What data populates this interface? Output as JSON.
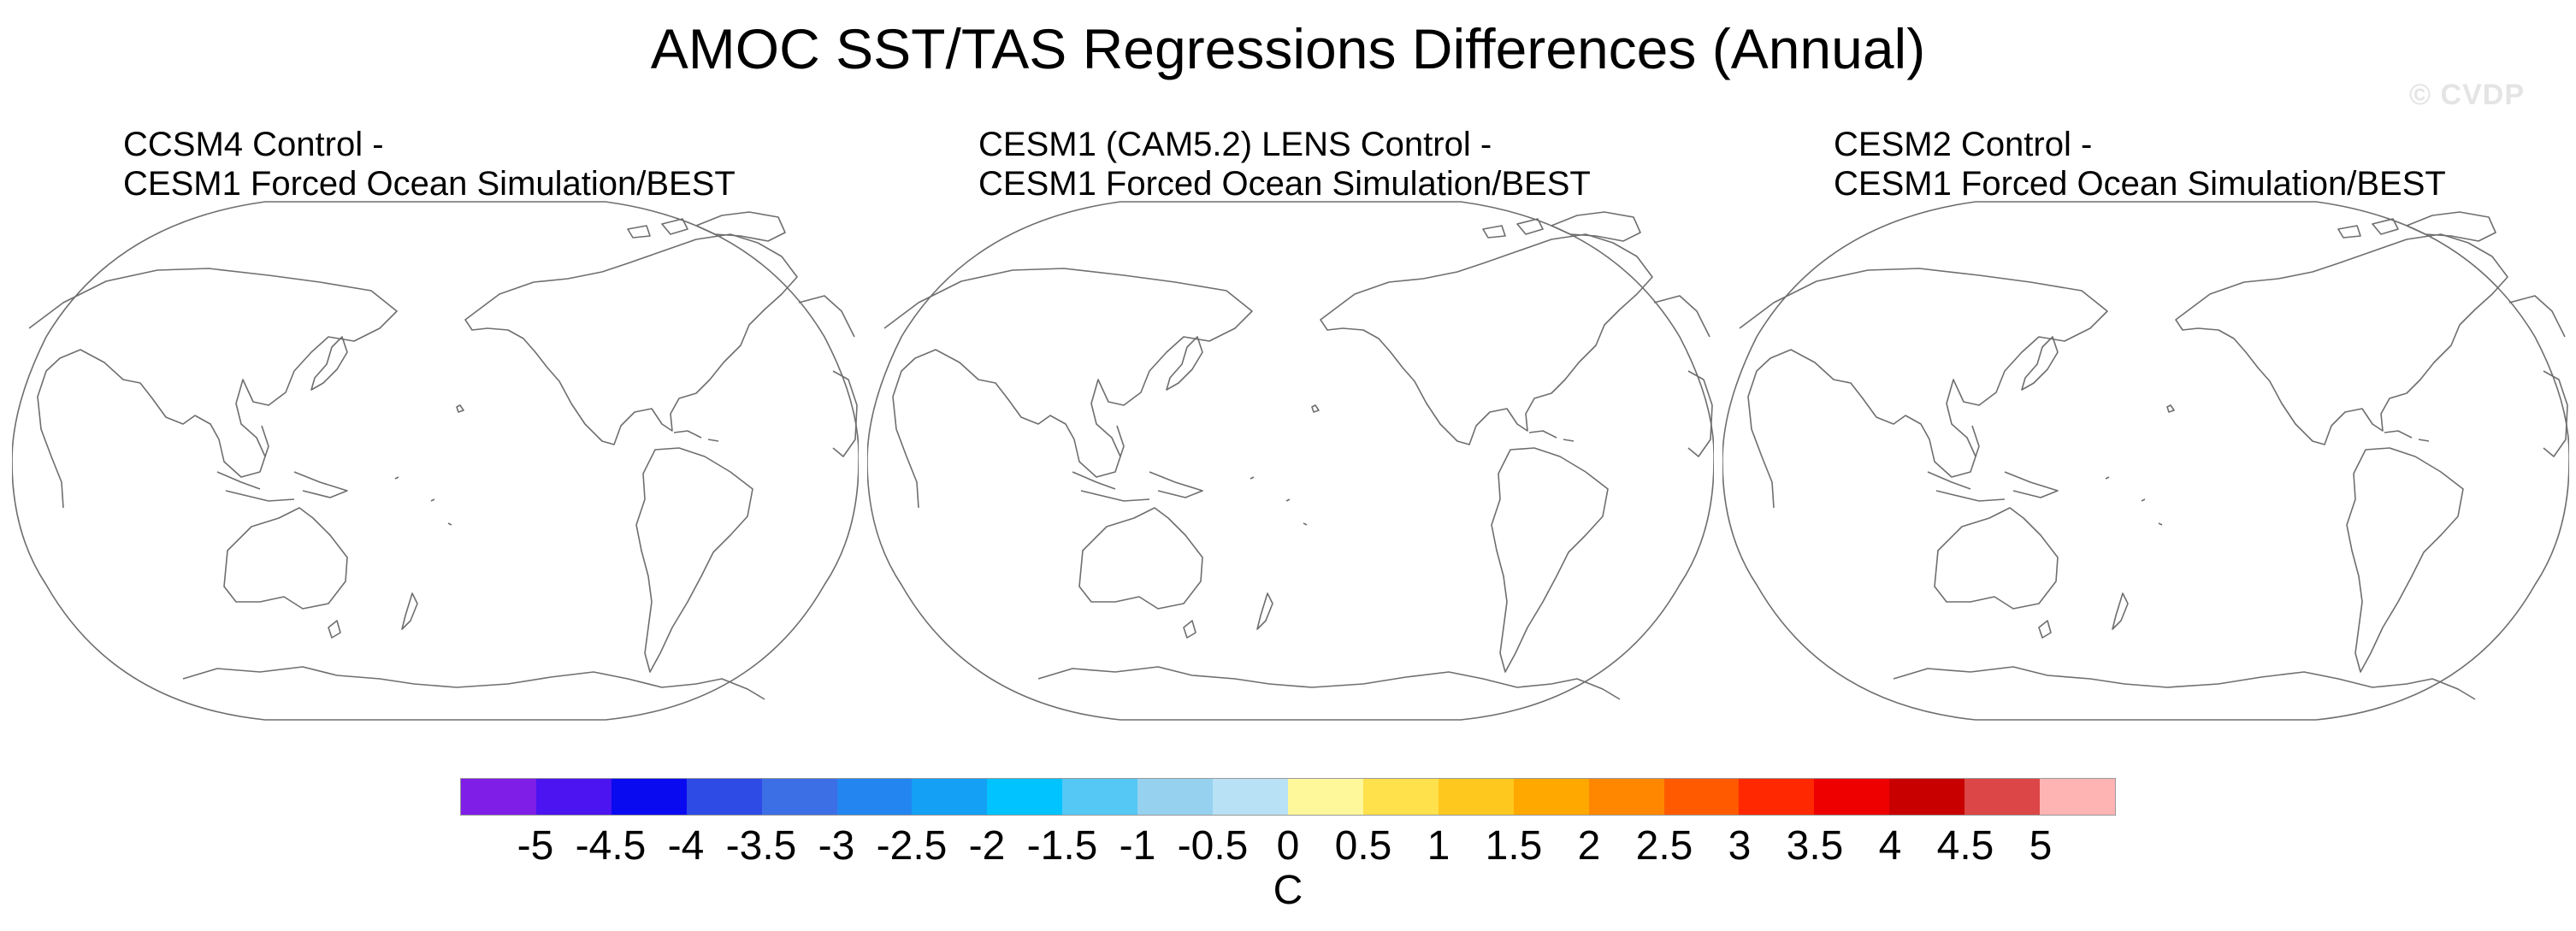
{
  "title": "AMOC SST/TAS Regressions Differences (Annual)",
  "watermark": "© CVDP",
  "panels": [
    {
      "line1": "CCSM4 Control -",
      "line2": "CESM1 Forced Ocean Simulation/BEST"
    },
    {
      "line1": "CESM1 (CAM5.2) LENS Control -",
      "line2": "CESM1 Forced Ocean Simulation/BEST"
    },
    {
      "line1": "CESM2 Control -",
      "line2": "CESM1 Forced Ocean Simulation/BEST"
    }
  ],
  "colorbar": {
    "unit": "C",
    "colors": [
      "#7e1ee6",
      "#4b14f0",
      "#0a0af0",
      "#2e4be6",
      "#3c6ee6",
      "#2385f0",
      "#14a0f5",
      "#00c3ff",
      "#55c8f5",
      "#96d2ef",
      "#b9e1f5",
      "#fff89a",
      "#ffe14b",
      "#ffc81e",
      "#ffa800",
      "#ff8700",
      "#ff5a00",
      "#ff2800",
      "#ee0000",
      "#c80000",
      "#dc4646",
      "#ffb4b4"
    ],
    "ticks": [
      "-5",
      "-4.5",
      "-4",
      "-3.5",
      "-3",
      "-2.5",
      "-2",
      "-1.5",
      "-1",
      "-0.5",
      "0",
      "0.5",
      "1",
      "1.5",
      "2",
      "2.5",
      "3",
      "3.5",
      "4",
      "4.5",
      "5"
    ]
  }
}
